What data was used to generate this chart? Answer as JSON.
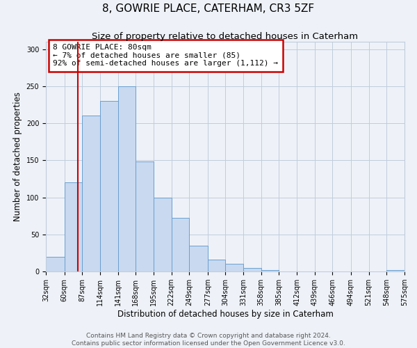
{
  "title": "8, GOWRIE PLACE, CATERHAM, CR3 5ZF",
  "subtitle": "Size of property relative to detached houses in Caterham",
  "xlabel": "Distribution of detached houses by size in Caterham",
  "ylabel": "Number of detached properties",
  "bin_edges": [
    32,
    60,
    87,
    114,
    141,
    168,
    195,
    222,
    249,
    277,
    304,
    331,
    358,
    385,
    412,
    439,
    466,
    494,
    521,
    548,
    575
  ],
  "bar_heights": [
    20,
    120,
    210,
    230,
    250,
    148,
    100,
    72,
    35,
    16,
    10,
    5,
    2,
    0,
    0,
    0,
    0,
    0,
    0,
    2
  ],
  "bar_color": "#c8d9f0",
  "bar_edge_color": "#6a9fd0",
  "vline_x": 80,
  "vline_color": "#cc0000",
  "annotation_text": "8 GOWRIE PLACE: 80sqm\n← 7% of detached houses are smaller (85)\n92% of semi-detached houses are larger (1,112) →",
  "annotation_box_color": "#ffffff",
  "annotation_box_edge": "#cc0000",
  "ylim": [
    0,
    310
  ],
  "yticks": [
    0,
    50,
    100,
    150,
    200,
    250,
    300
  ],
  "tick_labels": [
    "32sqm",
    "60sqm",
    "87sqm",
    "114sqm",
    "141sqm",
    "168sqm",
    "195sqm",
    "222sqm",
    "249sqm",
    "277sqm",
    "304sqm",
    "331sqm",
    "358sqm",
    "385sqm",
    "412sqm",
    "439sqm",
    "466sqm",
    "494sqm",
    "521sqm",
    "548sqm",
    "575sqm"
  ],
  "footer1": "Contains HM Land Registry data © Crown copyright and database right 2024.",
  "footer2": "Contains public sector information licensed under the Open Government Licence v3.0.",
  "background_color": "#eef2f8",
  "grid_color": "#c0ccdd",
  "title_fontsize": 11,
  "subtitle_fontsize": 9.5,
  "axis_label_fontsize": 8.5,
  "tick_fontsize": 7,
  "footer_fontsize": 6.5,
  "annotation_fontsize": 8
}
